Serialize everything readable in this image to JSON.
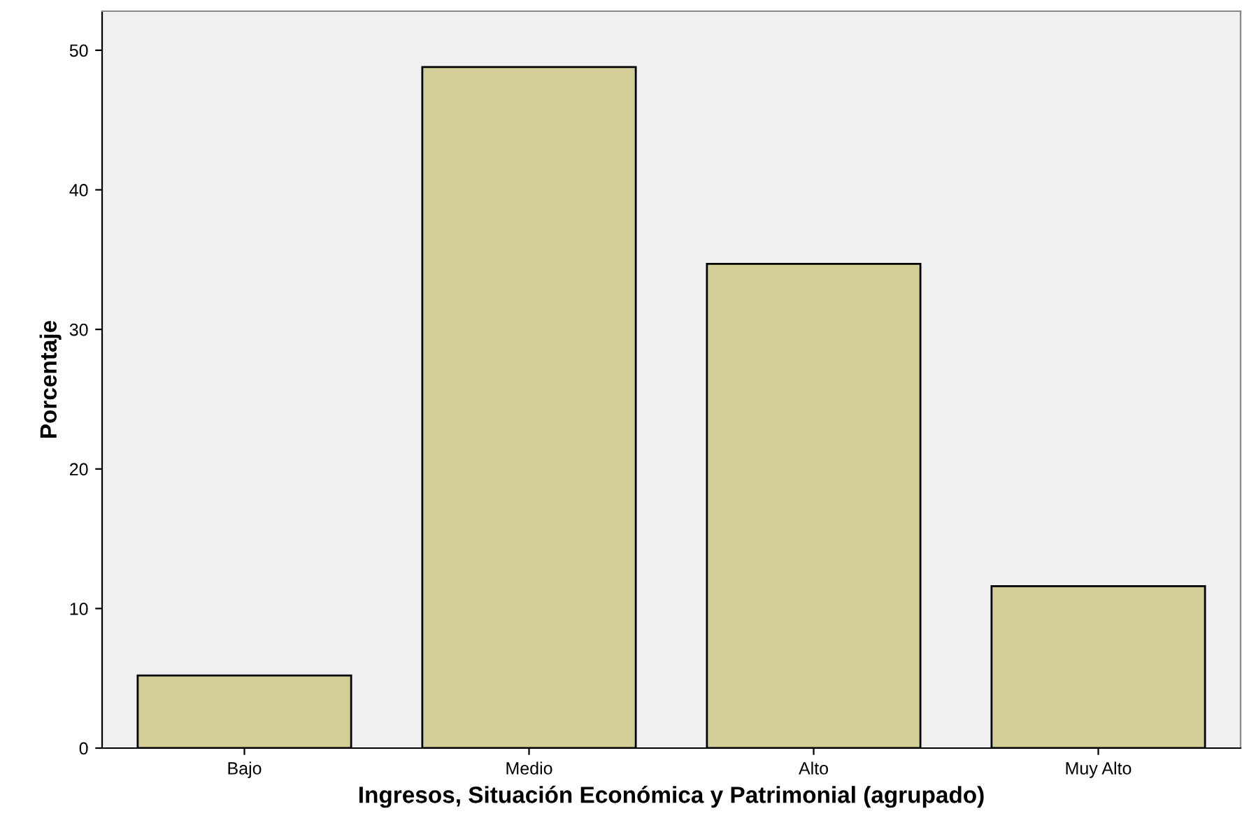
{
  "chart_data": {
    "type": "bar",
    "xlabel": "Ingresos, Situación Económica y Patrimonial (agrupado)",
    "ylabel": "Porcentaje",
    "categories": [
      "Bajo",
      "Medio",
      "Alto",
      "Muy Alto"
    ],
    "values": [
      5.2,
      48.8,
      34.7,
      11.6
    ],
    "color": "#d3ce97",
    "ylim": [
      0,
      52.8
    ],
    "yticks": [
      0,
      10,
      20,
      30,
      40,
      50
    ],
    "grid": false
  }
}
